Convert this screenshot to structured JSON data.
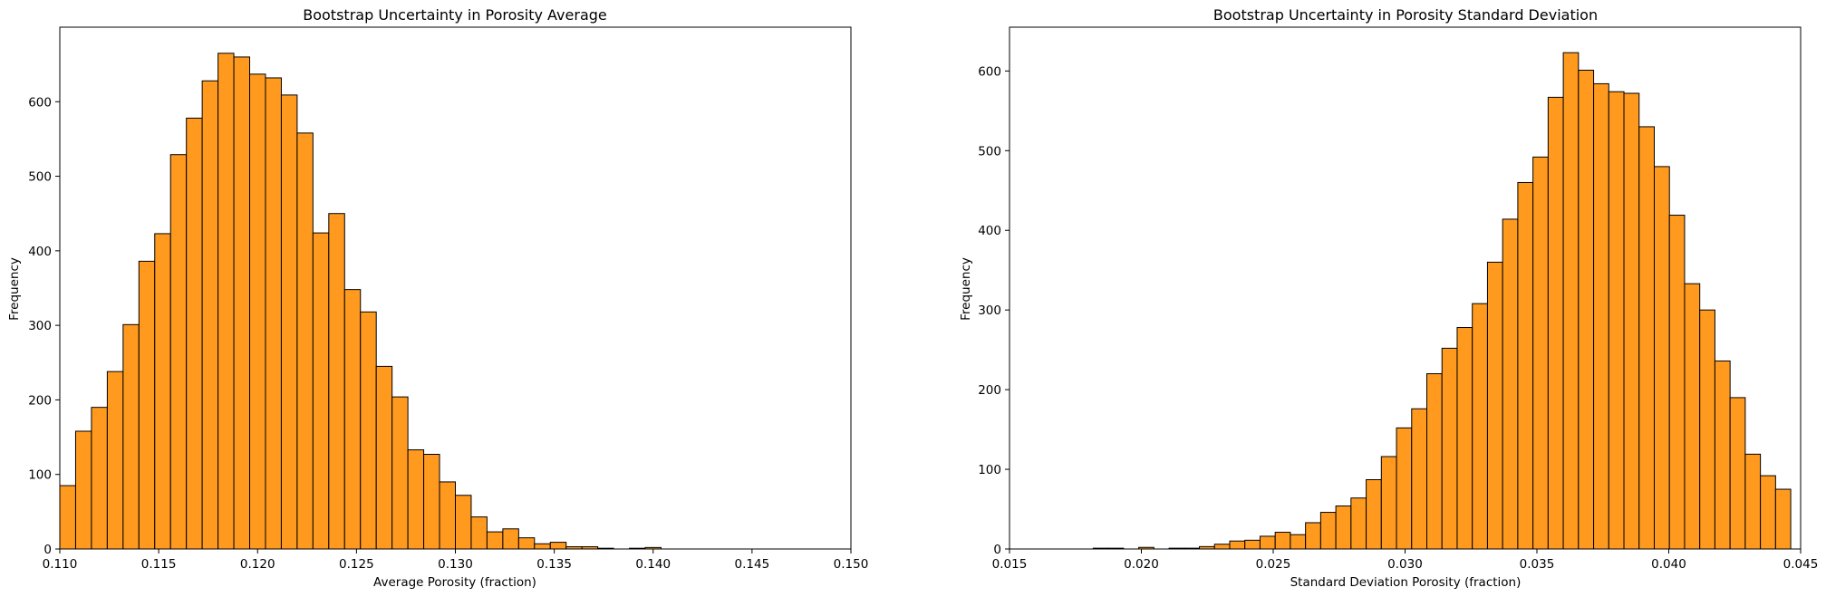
{
  "chart_data": [
    {
      "type": "bar",
      "title": "Bootstrap Uncertainty in Porosity Average",
      "xlabel": "Average Porosity (fraction)",
      "ylabel": "Frequency",
      "xlim": [
        0.11,
        0.15
      ],
      "ylim": [
        0,
        700
      ],
      "xticks": [
        "0.110",
        "0.115",
        "0.120",
        "0.125",
        "0.130",
        "0.135",
        "0.140",
        "0.145",
        "0.150"
      ],
      "yticks": [
        "0",
        "100",
        "200",
        "300",
        "400",
        "500",
        "600"
      ],
      "grid": false,
      "bar_color": "#ff9a1f",
      "edge_color": "#000000",
      "bin_start": 0.11,
      "bin_width": 0.0008,
      "values": [
        85,
        158,
        190,
        238,
        301,
        386,
        423,
        529,
        578,
        628,
        665,
        660,
        637,
        632,
        609,
        558,
        424,
        450,
        348,
        318,
        245,
        204,
        133,
        127,
        90,
        72,
        43,
        23,
        27,
        15,
        7,
        9,
        3,
        3,
        1,
        0,
        1,
        2
      ]
    },
    {
      "type": "bar",
      "title": "Bootstrap Uncertainty in Porosity Standard Deviation",
      "xlabel": "Standard Deviation Porosity (fraction)",
      "ylabel": "Frequency",
      "xlim": [
        0.015,
        0.045
      ],
      "ylim": [
        0,
        655
      ],
      "xticks": [
        "0.015",
        "0.020",
        "0.025",
        "0.030",
        "0.035",
        "0.040",
        "0.045"
      ],
      "yticks": [
        "0",
        "100",
        "200",
        "300",
        "400",
        "500",
        "600"
      ],
      "grid": false,
      "bar_color": "#ff9a1f",
      "edge_color": "#000000",
      "bin_start": 0.0176,
      "bin_width": 0.000575,
      "values": [
        0,
        1,
        1,
        0,
        2,
        0,
        1,
        1,
        3,
        6,
        10,
        11,
        16,
        21,
        18,
        33,
        46,
        54,
        64,
        87,
        116,
        152,
        176,
        220,
        252,
        278,
        308,
        360,
        414,
        460,
        492,
        567,
        623,
        601,
        584,
        574,
        572,
        530,
        480,
        419,
        333,
        300,
        236,
        190,
        119,
        92,
        75
      ]
    }
  ]
}
